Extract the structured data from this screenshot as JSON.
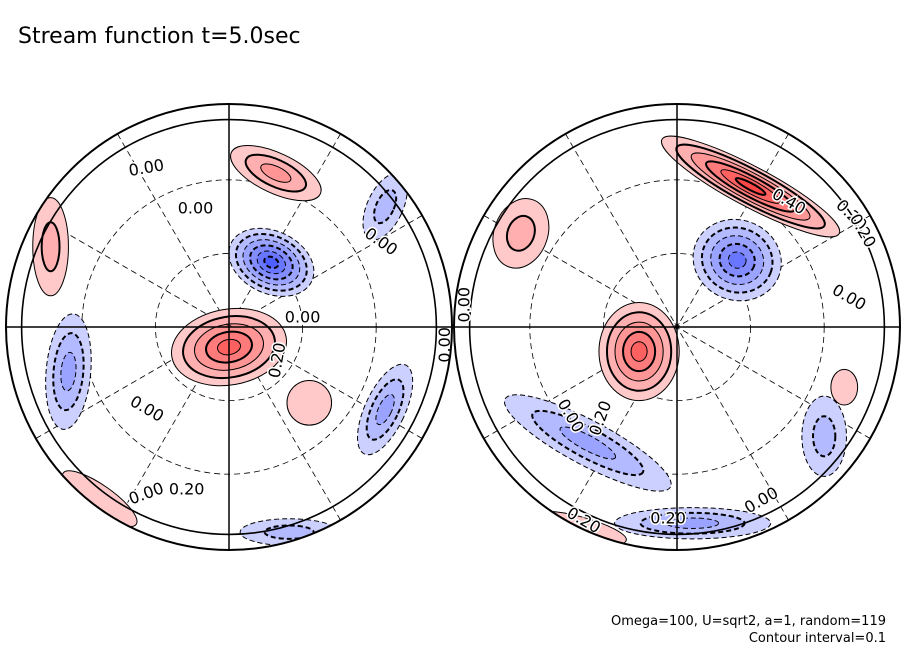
{
  "chart_data": {
    "type": "contour",
    "title": "Stream function t=5.0sec",
    "projection": "two-hemisphere orthographic",
    "colors": {
      "positive": "#ff5a5a",
      "negative": "#5a6cff",
      "zero": "#ffffff",
      "line": "#000000"
    },
    "contour_interval": 0.1,
    "levels": [
      -0.6,
      -0.5,
      -0.4,
      -0.3,
      -0.2,
      -0.1,
      0.0,
      0.1,
      0.2,
      0.3,
      0.4,
      0.5
    ],
    "hemispheres": [
      {
        "name": "left",
        "contour_labels": [
          "0.00",
          "0.00",
          "0.00",
          "0.00",
          "0.20",
          "0.00",
          "0.00",
          "0.20",
          "0.00"
        ],
        "features": [
          {
            "sign": "positive",
            "peak": 0.5
          },
          {
            "sign": "negative",
            "peak": -0.6
          },
          {
            "sign": "positive",
            "peak": 0.35
          },
          {
            "sign": "negative",
            "peak": -0.3
          },
          {
            "sign": "positive",
            "peak": 0.2
          },
          {
            "sign": "negative",
            "peak": -0.25
          },
          {
            "sign": "negative",
            "peak": -0.2
          },
          {
            "sign": "positive",
            "peak": 0.15
          },
          {
            "sign": "negative",
            "peak": -0.2
          },
          {
            "sign": "positive",
            "peak": 0.1
          }
        ]
      },
      {
        "name": "right",
        "contour_labels": [
          "0.40",
          "0.20",
          "0.20",
          "0.00",
          "0.00",
          "0.20",
          "0.00",
          "0.20",
          "0.00",
          "0.20"
        ],
        "features": [
          {
            "sign": "positive",
            "peak": 0.55
          },
          {
            "sign": "negative",
            "peak": -0.5
          },
          {
            "sign": "positive",
            "peak": 0.45
          },
          {
            "sign": "negative",
            "peak": -0.35
          },
          {
            "sign": "negative",
            "peak": -0.3
          },
          {
            "sign": "positive",
            "peak": 0.2
          },
          {
            "sign": "positive",
            "peak": 0.15
          },
          {
            "sign": "negative",
            "peak": -0.2
          },
          {
            "sign": "positive",
            "peak": 0.1
          }
        ]
      }
    ]
  },
  "footnote": {
    "params": "Omega=100, U=sqrt2, a=1, random=119",
    "interval": "Contour interval=0.1"
  }
}
